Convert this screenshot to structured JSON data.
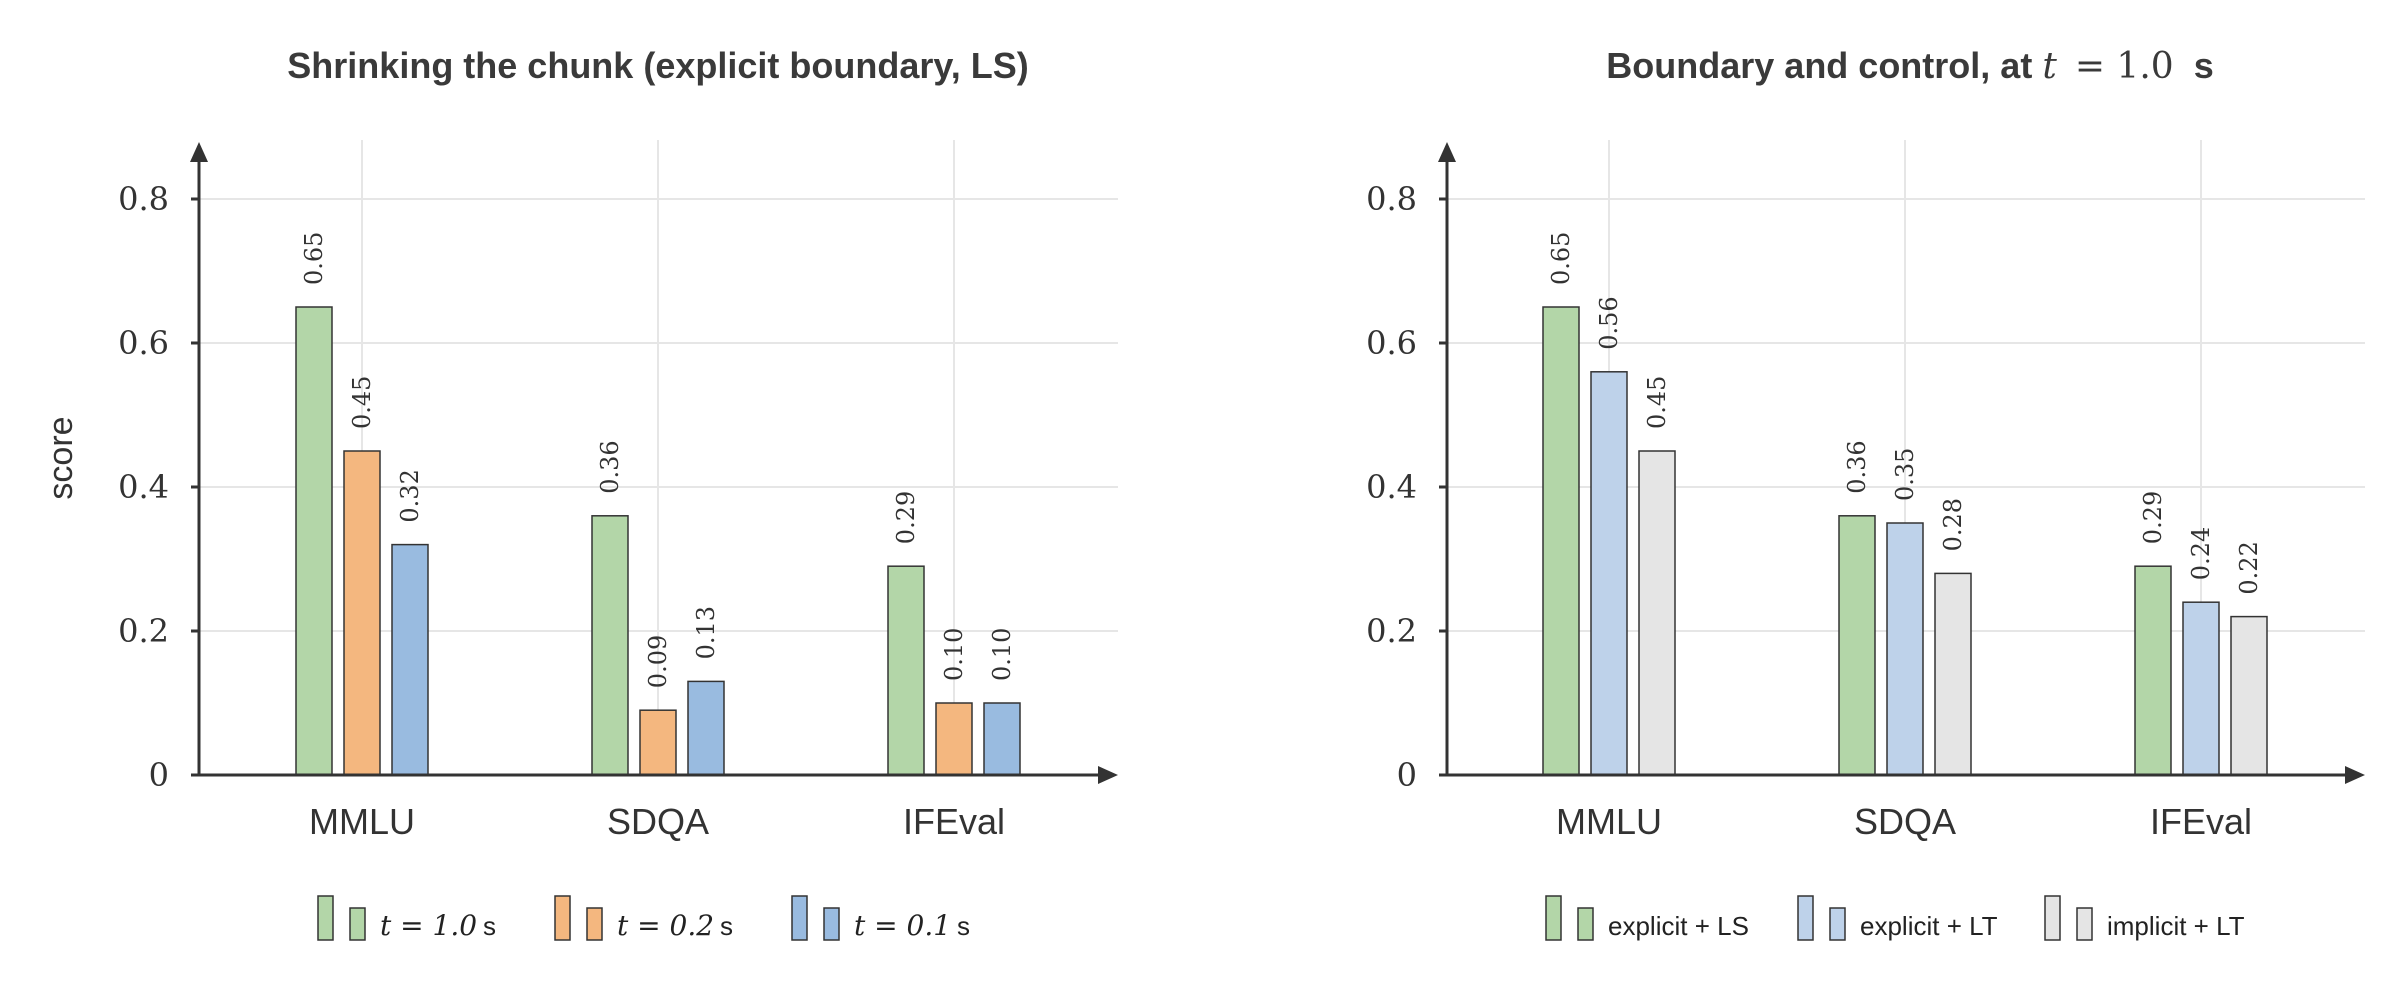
{
  "chart_data": [
    {
      "type": "bar",
      "title": "Shrinking the chunk (explicit boundary, LS)",
      "ylabel": "score",
      "xlabel": "",
      "ylim": [
        0,
        0.88
      ],
      "yticks": [
        "0",
        "0.2",
        "0.4",
        "0.6",
        "0.8"
      ],
      "categories": [
        "MMLU",
        "SDQA",
        "IFEval"
      ],
      "grid": true,
      "legend_placement": "bottom",
      "series": [
        {
          "name": "t = 1.0 s",
          "color": "#b3d6a8",
          "values": [
            0.65,
            0.36,
            0.29
          ],
          "labels": [
            "0.65",
            "0.36",
            "0.29"
          ]
        },
        {
          "name": "t = 0.2 s",
          "color": "#f4b77f",
          "values": [
            0.45,
            0.09,
            0.1
          ],
          "labels": [
            "0.45",
            "0.09",
            "0.10"
          ]
        },
        {
          "name": "t = 0.1 s",
          "color": "#99bbe0",
          "values": [
            0.32,
            0.13,
            0.1
          ],
          "labels": [
            "0.32",
            "0.13",
            "0.10"
          ]
        }
      ],
      "legend": [
        {
          "math": "t = 1.0",
          "unit": "s"
        },
        {
          "math": "t = 0.2",
          "unit": "s"
        },
        {
          "math": "t = 0.1",
          "unit": "s"
        }
      ]
    },
    {
      "type": "bar",
      "title": "Boundary and control, at t = 1.0 s",
      "title_parts": {
        "text": "Boundary and control, at",
        "math_var": "t",
        "math_rest": "= 1.0",
        "unit": "s"
      },
      "ylabel": "",
      "xlabel": "",
      "ylim": [
        0,
        0.88
      ],
      "yticks": [
        "0",
        "0.2",
        "0.4",
        "0.6",
        "0.8"
      ],
      "categories": [
        "MMLU",
        "SDQA",
        "IFEval"
      ],
      "grid": true,
      "legend_placement": "bottom",
      "series": [
        {
          "name": "explicit + LS",
          "color": "#b3d6a8",
          "values": [
            0.65,
            0.36,
            0.29
          ],
          "labels": [
            "0.65",
            "0.36",
            "0.29"
          ]
        },
        {
          "name": "explicit + LT",
          "color": "#bed2ea",
          "values": [
            0.56,
            0.35,
            0.24
          ],
          "labels": [
            "0.56",
            "0.35",
            "0.24"
          ]
        },
        {
          "name": "implicit + LT",
          "color": "#e5e5e5",
          "values": [
            0.45,
            0.28,
            0.22
          ],
          "labels": [
            "0.45",
            "0.28",
            "0.22"
          ]
        }
      ]
    }
  ]
}
